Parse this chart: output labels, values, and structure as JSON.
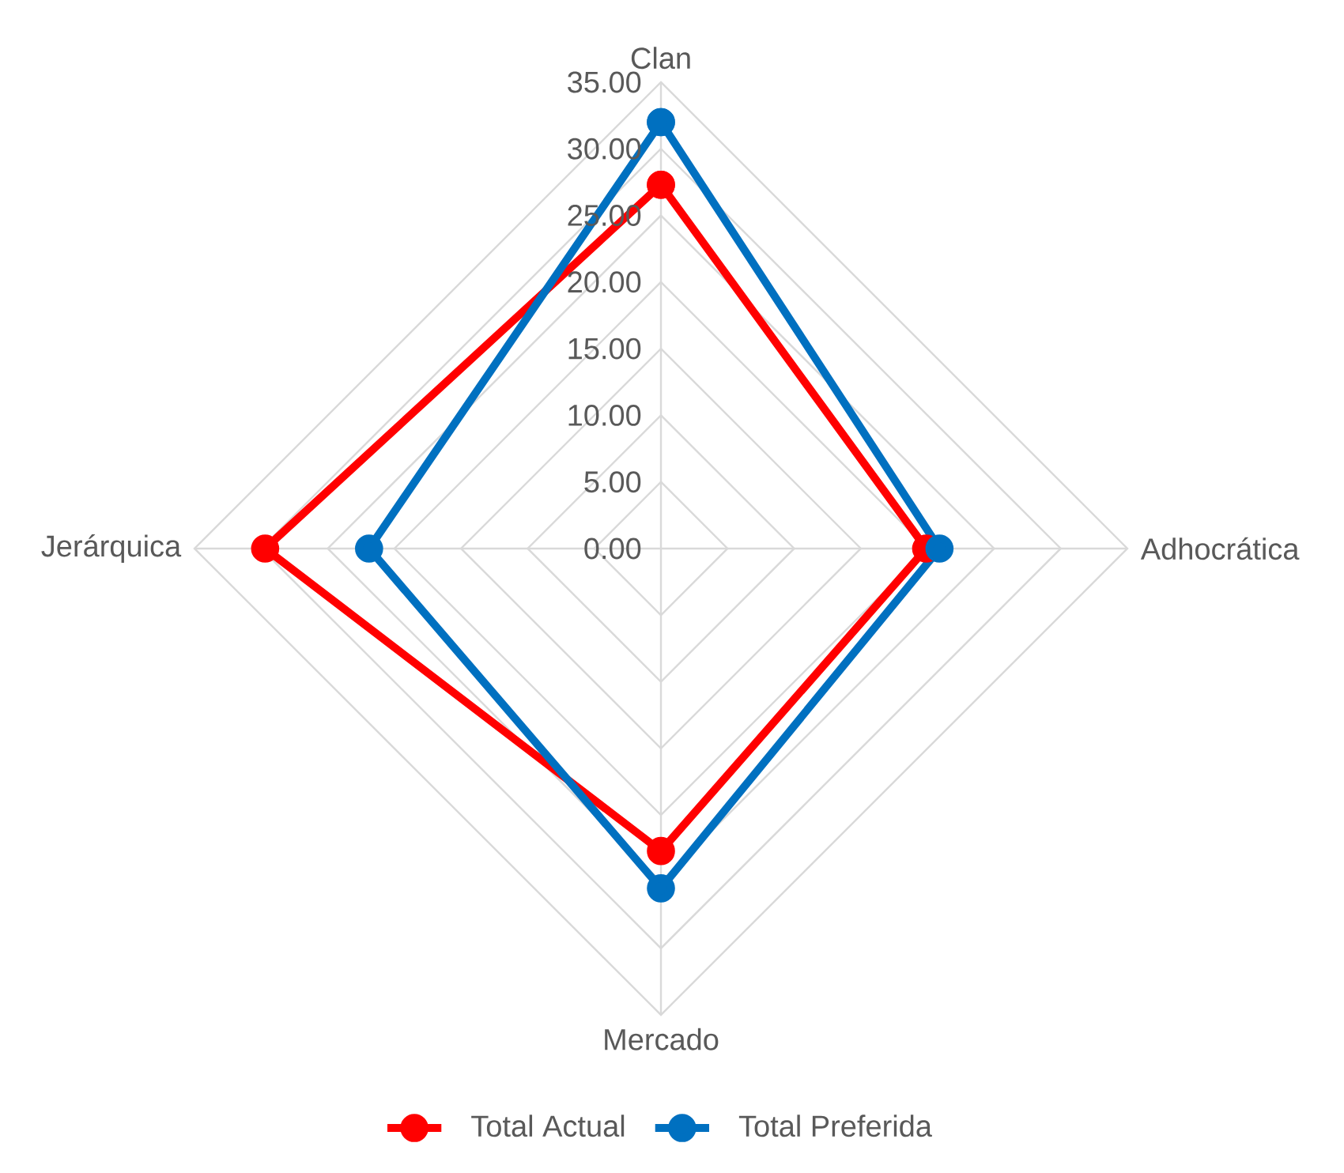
{
  "chart_data": {
    "type": "radar",
    "categories": [
      "Clan",
      "Adhocrática",
      "Mercado",
      "Jerárquica"
    ],
    "series": [
      {
        "name": "Total Actual",
        "color": "#ff0000",
        "values": [
          27.3,
          19.9,
          22.7,
          29.7
        ]
      },
      {
        "name": "Total Preferida",
        "color": "#0070c0",
        "values": [
          32.0,
          20.9,
          25.5,
          21.9
        ]
      }
    ],
    "ylim": [
      0,
      35
    ],
    "yticks": [
      {
        "value": 0,
        "label": "0.00"
      },
      {
        "value": 5,
        "label": "5.00"
      },
      {
        "value": 10,
        "label": "10.00"
      },
      {
        "value": 15,
        "label": "15.00"
      },
      {
        "value": 20,
        "label": "20.00"
      },
      {
        "value": 25,
        "label": "25.00"
      },
      {
        "value": 30,
        "label": "30.00"
      },
      {
        "value": 35,
        "label": "35.00"
      }
    ],
    "grid": true,
    "legend": "bottom",
    "marker": "circle",
    "line_style": "solid"
  }
}
